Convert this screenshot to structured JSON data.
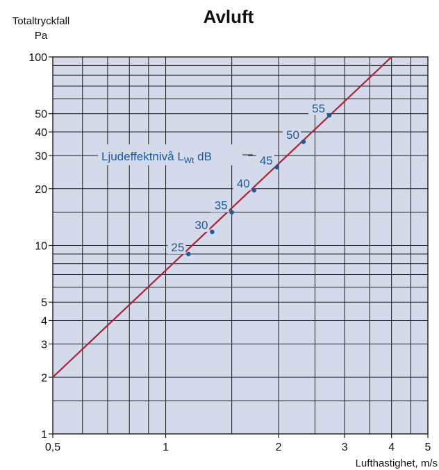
{
  "chart_data": {
    "type": "line",
    "title": "Avluft",
    "ylabel_line1": "Totaltryckfall",
    "ylabel_line2": "Pa",
    "xlabel": "Lufthastighet, m/s",
    "x_scale": "log",
    "y_scale": "log",
    "xlim": [
      0.5,
      5
    ],
    "ylim": [
      1,
      100
    ],
    "grid": true,
    "x_ticks": [
      {
        "value": 0.5,
        "label": "0,5"
      },
      {
        "value": 1,
        "label": "1"
      },
      {
        "value": 2,
        "label": "2"
      },
      {
        "value": 3,
        "label": "3"
      },
      {
        "value": 4,
        "label": "4"
      },
      {
        "value": 5,
        "label": "5"
      }
    ],
    "x_grid": [
      0.6,
      0.7,
      0.8,
      0.9,
      1,
      1.5,
      2,
      2.5,
      3,
      3.5,
      4,
      4.5
    ],
    "y_ticks": [
      {
        "value": 1,
        "label": "1"
      },
      {
        "value": 2,
        "label": "2"
      },
      {
        "value": 3,
        "label": "3"
      },
      {
        "value": 4,
        "label": "4"
      },
      {
        "value": 5,
        "label": "5"
      },
      {
        "value": 10,
        "label": "10"
      },
      {
        "value": 20,
        "label": "20"
      },
      {
        "value": 30,
        "label": "30"
      },
      {
        "value": 40,
        "label": "40"
      },
      {
        "value": 50,
        "label": "50"
      },
      {
        "value": 100,
        "label": "100"
      }
    ],
    "y_grid": [
      1.5,
      2,
      3,
      4,
      5,
      6,
      7,
      8,
      9,
      10,
      15,
      20,
      30,
      40,
      50,
      60,
      70,
      80,
      90
    ],
    "series": [
      {
        "x": [
          0.5,
          4
        ],
        "y": [
          2,
          100
        ]
      }
    ],
    "sound_levels": {
      "legend": "Ljudeffektnivå L",
      "legend_sub": "Wt",
      "legend_unit": " dB",
      "points": [
        {
          "label": "25",
          "x": 1.15,
          "y": 9
        },
        {
          "label": "30",
          "x": 1.33,
          "y": 11.8
        },
        {
          "label": "35",
          "x": 1.5,
          "y": 15
        },
        {
          "label": "40",
          "x": 1.72,
          "y": 19.6
        },
        {
          "label": "45",
          "x": 1.98,
          "y": 26
        },
        {
          "label": "50",
          "x": 2.33,
          "y": 35.5
        },
        {
          "label": "55",
          "x": 2.73,
          "y": 49
        }
      ]
    },
    "colors": {
      "plot_bg": "#d4dae9",
      "grid": "#1a1a1a",
      "line": "#a8243a",
      "points": "#1b5aa0",
      "labels": "#1b5aa0"
    }
  }
}
